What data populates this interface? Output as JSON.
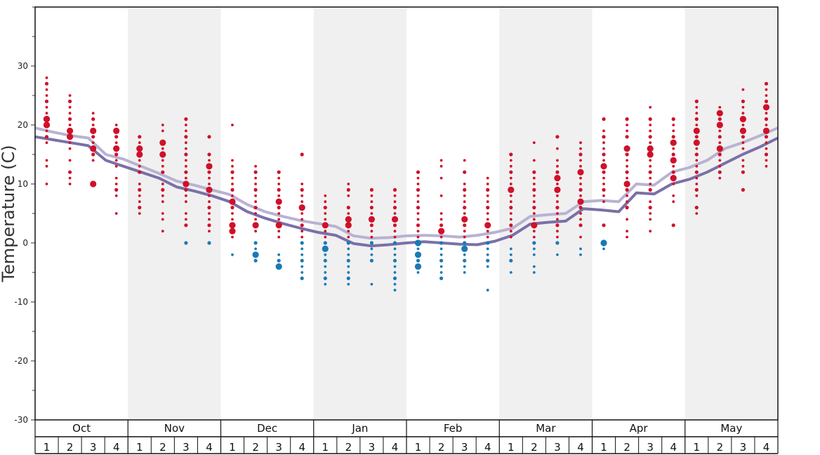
{
  "chart_data": {
    "type": "scatter",
    "title": "",
    "ylabel": "Temperature (C)",
    "ylim": [
      -30,
      40
    ],
    "y_ticks": [
      -30,
      -20,
      -10,
      0,
      10,
      20,
      30
    ],
    "grid": false,
    "months": [
      "Oct",
      "Nov",
      "Dec",
      "Jan",
      "Feb",
      "Mar",
      "Apr",
      "May"
    ],
    "week_labels": [
      "1",
      "2",
      "3",
      "4"
    ],
    "colors": {
      "warm_dot": "#d0102a",
      "cold_dot": "#1a7ab5",
      "upper_line": "#b8b2d2",
      "lower_line": "#7a70a8",
      "band_shade": "#f0f0f0"
    },
    "series": [
      {
        "line": "upper",
        "values": [
          19.5,
          18.8,
          18.2,
          17.8,
          15.0,
          14.2,
          13.0,
          11.8,
          10.5,
          9.8,
          9.0,
          8.2,
          6.5,
          5.3,
          4.5,
          3.8,
          3.3,
          2.8,
          1.2,
          0.8,
          0.9,
          1.2,
          1.3,
          1.2,
          1.0,
          1.3,
          1.8,
          2.5,
          4.5,
          4.8,
          5.0,
          7.0,
          7.2,
          7.0,
          10.0,
          9.8,
          12.0,
          12.8,
          14.0,
          16.0,
          17.0,
          18.2,
          19.5
        ]
      },
      {
        "line": "lower",
        "values": [
          18.0,
          17.5,
          17.0,
          16.5,
          14.0,
          13.0,
          12.0,
          11.0,
          9.5,
          8.8,
          8.0,
          7.0,
          5.3,
          4.2,
          3.3,
          2.5,
          1.8,
          1.3,
          -0.1,
          -0.5,
          -0.3,
          0.0,
          0.2,
          0.0,
          -0.2,
          -0.3,
          0.3,
          1.3,
          3.2,
          3.5,
          3.7,
          5.8,
          5.6,
          5.3,
          8.5,
          8.3,
          10.0,
          10.8,
          12.0,
          13.5,
          15.0,
          16.3,
          17.8
        ]
      }
    ],
    "observations": [
      {
        "month": "Oct",
        "week": 1,
        "values": [
          28,
          27,
          26,
          25,
          24,
          23,
          22,
          21,
          21,
          20,
          20,
          19,
          18,
          17,
          14,
          13,
          10
        ],
        "large": [
          21,
          20
        ]
      },
      {
        "month": "Oct",
        "week": 2,
        "values": [
          25,
          24,
          23,
          22,
          21,
          20,
          19,
          18,
          17,
          16,
          14,
          12,
          11,
          10
        ],
        "large": [
          19,
          18
        ]
      },
      {
        "month": "Oct",
        "week": 3,
        "values": [
          22,
          21,
          20,
          19,
          18,
          17,
          16,
          15,
          14,
          10
        ],
        "large": [
          19,
          16,
          10
        ]
      },
      {
        "month": "Oct",
        "week": 4,
        "values": [
          20,
          19,
          18,
          17,
          16,
          15,
          14,
          13,
          11,
          10,
          9,
          8,
          5
        ],
        "large": [
          19,
          16
        ]
      },
      {
        "month": "Nov",
        "week": 1,
        "values": [
          18,
          17,
          16,
          15,
          14,
          13,
          12,
          10,
          9,
          8,
          7,
          6,
          5
        ],
        "large": [
          16,
          15
        ]
      },
      {
        "month": "Nov",
        "week": 2,
        "values": [
          20,
          19,
          17,
          16,
          15,
          14,
          13,
          12,
          10,
          9,
          8,
          7,
          5,
          4,
          2
        ],
        "large": [
          17,
          15
        ]
      },
      {
        "month": "Nov",
        "week": 3,
        "values": [
          21,
          20,
          19,
          18,
          17,
          16,
          15,
          14,
          13,
          12,
          11,
          10,
          9,
          8,
          7,
          5,
          4,
          3,
          0
        ],
        "large": [
          10
        ]
      },
      {
        "month": "Nov",
        "week": 4,
        "values": [
          18,
          15,
          14,
          13,
          12,
          11,
          10,
          9,
          8,
          7,
          6,
          5,
          4,
          3,
          2,
          0
        ],
        "large": [
          13,
          9
        ]
      },
      {
        "month": "Dec",
        "week": 1,
        "values": [
          20,
          14,
          13,
          12,
          11,
          10,
          9,
          8,
          7,
          6,
          5,
          4,
          3,
          2,
          1,
          -2
        ],
        "large": [
          7,
          3,
          2
        ]
      },
      {
        "month": "Dec",
        "week": 2,
        "values": [
          13,
          12,
          11,
          10,
          9,
          8,
          7,
          6,
          5,
          4,
          3,
          2,
          0,
          -1,
          -2,
          -3
        ],
        "large": [
          3,
          -2
        ]
      },
      {
        "month": "Dec",
        "week": 3,
        "values": [
          12,
          11,
          10,
          9,
          8,
          7,
          6,
          5,
          4,
          3,
          2,
          1,
          -2,
          -3,
          -4
        ],
        "large": [
          7,
          3,
          -4
        ]
      },
      {
        "month": "Dec",
        "week": 4,
        "values": [
          15,
          10,
          9,
          8,
          7,
          6,
          5,
          4,
          3,
          2,
          1,
          0,
          -1,
          -2,
          -3,
          -4,
          -5,
          -6
        ],
        "large": [
          6
        ]
      },
      {
        "month": "Jan",
        "week": 1,
        "values": [
          8,
          7,
          6,
          5,
          4,
          3,
          2,
          1,
          0,
          -1,
          -2,
          -3,
          -4,
          -5,
          -6,
          -7
        ],
        "large": [
          3,
          -1
        ]
      },
      {
        "month": "Jan",
        "week": 2,
        "values": [
          10,
          9,
          8,
          6,
          5,
          4,
          3,
          2,
          1,
          0,
          -1,
          -2,
          -3,
          -4,
          -5,
          -6,
          -7
        ],
        "large": [
          4,
          3
        ]
      },
      {
        "month": "Jan",
        "week": 3,
        "values": [
          9,
          8,
          7,
          6,
          5,
          4,
          3,
          2,
          1,
          0,
          -1,
          -2,
          -3,
          -7
        ],
        "large": [
          4
        ]
      },
      {
        "month": "Jan",
        "week": 4,
        "values": [
          9,
          8,
          7,
          6,
          5,
          4,
          3,
          2,
          1,
          0,
          -1,
          -2,
          -3,
          -4,
          -5,
          -6,
          -7,
          -8
        ],
        "large": [
          4
        ]
      },
      {
        "month": "Feb",
        "week": 1,
        "values": [
          12,
          11,
          10,
          9,
          8,
          7,
          6,
          5,
          4,
          3,
          2,
          1,
          0,
          -1,
          -2,
          -3,
          -4,
          -5
        ],
        "large": [
          0,
          -2,
          -4
        ]
      },
      {
        "month": "Feb",
        "week": 2,
        "values": [
          14,
          13,
          11,
          8,
          5,
          4,
          3,
          2,
          1,
          0,
          -1,
          -2,
          -3,
          -4,
          -5,
          -6
        ],
        "large": [
          2
        ]
      },
      {
        "month": "Feb",
        "week": 3,
        "values": [
          14,
          12,
          10,
          9,
          8,
          7,
          6,
          5,
          4,
          3,
          2,
          1,
          0,
          -1,
          -2,
          -3,
          -4,
          -5
        ],
        "large": [
          4,
          -1
        ]
      },
      {
        "month": "Feb",
        "week": 4,
        "values": [
          11,
          10,
          9,
          8,
          7,
          6,
          5,
          4,
          3,
          2,
          1,
          0,
          -1,
          -2,
          -3,
          -4,
          -8
        ],
        "large": [
          3
        ]
      },
      {
        "month": "Mar",
        "week": 1,
        "values": [
          15,
          14,
          13,
          12,
          11,
          10,
          9,
          8,
          7,
          6,
          5,
          4,
          3,
          2,
          1,
          -1,
          -2,
          -3,
          -5
        ],
        "large": [
          9
        ]
      },
      {
        "month": "Mar",
        "week": 2,
        "values": [
          17,
          14,
          12,
          11,
          10,
          9,
          8,
          7,
          6,
          5,
          4,
          3,
          2,
          1,
          0,
          -1,
          -2,
          -4,
          -5
        ],
        "large": [
          3
        ]
      },
      {
        "month": "Mar",
        "week": 3,
        "values": [
          18,
          16,
          14,
          13,
          12,
          11,
          10,
          9,
          8,
          7,
          6,
          5,
          4,
          3,
          2,
          1,
          0,
          -2
        ],
        "large": [
          11,
          9
        ]
      },
      {
        "month": "Mar",
        "week": 4,
        "values": [
          17,
          16,
          15,
          14,
          13,
          12,
          11,
          10,
          9,
          8,
          7,
          6,
          5,
          4,
          3,
          1,
          -1,
          -2
        ],
        "large": [
          12,
          7
        ]
      },
      {
        "month": "Apr",
        "week": 1,
        "values": [
          21,
          19,
          18,
          17,
          16,
          15,
          14,
          13,
          12,
          11,
          10,
          9,
          8,
          7,
          3,
          0,
          -1
        ],
        "large": [
          13,
          0
        ]
      },
      {
        "month": "Apr",
        "week": 2,
        "values": [
          21,
          20,
          19,
          18,
          16,
          15,
          14,
          13,
          12,
          11,
          10,
          9,
          8,
          7,
          6,
          4,
          2,
          1
        ],
        "large": [
          16,
          10
        ]
      },
      {
        "month": "Apr",
        "week": 3,
        "values": [
          23,
          21,
          20,
          19,
          18,
          17,
          16,
          15,
          14,
          13,
          12,
          11,
          10,
          9,
          7,
          6,
          5,
          4,
          2
        ],
        "large": [
          16,
          15
        ]
      },
      {
        "month": "Apr",
        "week": 4,
        "values": [
          21,
          20,
          19,
          18,
          17,
          16,
          15,
          14,
          13,
          12,
          11,
          10,
          8,
          7,
          3
        ],
        "large": [
          17,
          14,
          11
        ]
      },
      {
        "month": "May",
        "week": 1,
        "values": [
          24,
          23,
          22,
          21,
          20,
          19,
          18,
          17,
          16,
          15,
          14,
          13,
          12,
          11,
          10,
          9,
          8,
          6,
          5
        ],
        "large": [
          19,
          17
        ]
      },
      {
        "month": "May",
        "week": 2,
        "values": [
          23,
          22,
          21,
          20,
          19,
          18,
          17,
          16,
          15,
          14,
          13,
          12,
          11
        ],
        "large": [
          22,
          20,
          16
        ]
      },
      {
        "month": "May",
        "week": 3,
        "values": [
          26,
          24,
          23,
          22,
          21,
          20,
          19,
          18,
          17,
          16,
          14,
          13,
          12,
          9
        ],
        "large": [
          21,
          19
        ]
      },
      {
        "month": "May",
        "week": 4,
        "values": [
          27,
          26,
          25,
          24,
          23,
          22,
          21,
          20,
          19,
          18,
          17,
          16,
          15,
          14,
          13
        ],
        "large": [
          23,
          19
        ]
      }
    ]
  }
}
